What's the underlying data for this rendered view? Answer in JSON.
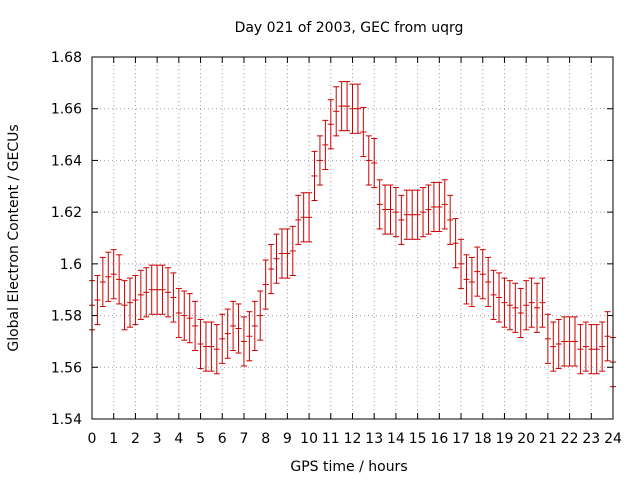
{
  "chart_data": {
    "type": "line",
    "title": "Day 021 of 2003, GEC from uqrg",
    "xlabel": "GPS time / hours",
    "ylabel": "Global Electron Content / GECUs",
    "xlim": [
      0,
      24
    ],
    "ylim": [
      1.54,
      1.68
    ],
    "grid": true,
    "x_ticks": [
      0,
      1,
      2,
      3,
      4,
      5,
      6,
      7,
      8,
      9,
      10,
      11,
      12,
      13,
      14,
      15,
      16,
      17,
      18,
      19,
      20,
      21,
      22,
      23,
      24
    ],
    "x_tick_labels": [
      "0",
      "1",
      "2",
      "3",
      "4",
      "5",
      "6",
      "7",
      "8",
      "9",
      "10",
      "11",
      "12",
      "13",
      "14",
      "15",
      "16",
      "17",
      "18",
      "19",
      "20",
      "21",
      "22",
      "23",
      "24"
    ],
    "y_ticks": [
      1.54,
      1.56,
      1.58,
      1.6,
      1.62,
      1.64,
      1.66,
      1.68
    ],
    "y_tick_labels": [
      "1.54",
      "1.56",
      "1.58",
      "1.6",
      "1.62",
      "1.64",
      "1.66",
      "1.68"
    ],
    "error": 0.0095,
    "series": [
      {
        "name": "GEC",
        "color": "#cc0000",
        "style": "errorbars",
        "x": [
          0.0,
          0.25,
          0.5,
          0.75,
          1.0,
          1.25,
          1.5,
          1.75,
          2.0,
          2.25,
          2.5,
          2.75,
          3.0,
          3.25,
          3.5,
          3.75,
          4.0,
          4.25,
          4.5,
          4.75,
          5.0,
          5.25,
          5.5,
          5.75,
          6.0,
          6.25,
          6.5,
          6.75,
          7.0,
          7.25,
          7.5,
          7.75,
          8.0,
          8.25,
          8.5,
          8.75,
          9.0,
          9.25,
          9.5,
          9.75,
          10.0,
          10.25,
          10.5,
          10.75,
          11.0,
          11.25,
          11.5,
          11.75,
          12.0,
          12.25,
          12.5,
          12.75,
          13.0,
          13.25,
          13.5,
          13.75,
          14.0,
          14.25,
          14.5,
          14.75,
          15.0,
          15.25,
          15.5,
          15.75,
          16.0,
          16.25,
          16.5,
          16.75,
          17.0,
          17.25,
          17.5,
          17.75,
          18.0,
          18.25,
          18.5,
          18.75,
          19.0,
          19.25,
          19.5,
          19.75,
          20.0,
          20.25,
          20.5,
          20.75,
          21.0,
          21.25,
          21.5,
          21.75,
          22.0,
          22.25,
          22.5,
          22.75,
          23.0,
          23.25,
          23.5,
          23.75,
          24.0
        ],
        "values": [
          1.584,
          1.586,
          1.593,
          1.595,
          1.596,
          1.594,
          1.584,
          1.585,
          1.586,
          1.588,
          1.589,
          1.59,
          1.59,
          1.59,
          1.589,
          1.587,
          1.581,
          1.58,
          1.579,
          1.576,
          1.569,
          1.568,
          1.568,
          1.567,
          1.571,
          1.573,
          1.576,
          1.575,
          1.57,
          1.572,
          1.576,
          1.58,
          1.592,
          1.598,
          1.602,
          1.604,
          1.604,
          1.605,
          1.617,
          1.618,
          1.618,
          1.634,
          1.64,
          1.646,
          1.654,
          1.659,
          1.661,
          1.661,
          1.66,
          1.66,
          1.651,
          1.64,
          1.639,
          1.623,
          1.621,
          1.621,
          1.62,
          1.617,
          1.619,
          1.619,
          1.619,
          1.62,
          1.621,
          1.622,
          1.622,
          1.623,
          1.617,
          1.608,
          1.6,
          1.594,
          1.593,
          1.597,
          1.596,
          1.593,
          1.588,
          1.587,
          1.585,
          1.584,
          1.583,
          1.581,
          1.584,
          1.585,
          1.583,
          1.585,
          1.571,
          1.568,
          1.569,
          1.57,
          1.57,
          1.57,
          1.567,
          1.568,
          1.567,
          1.567,
          1.568,
          1.572,
          1.562
        ]
      }
    ]
  }
}
